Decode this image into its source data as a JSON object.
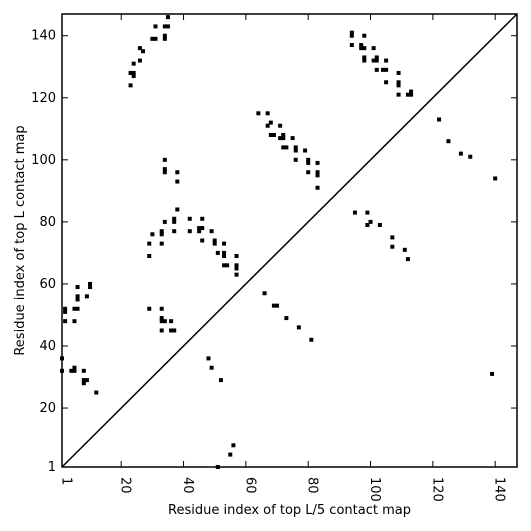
{
  "chart_data": {
    "type": "scatter",
    "xlabel": "Residue index of top L/5 contact map",
    "ylabel": "Residue index of top L contact map",
    "xlim": [
      1,
      147
    ],
    "ylim": [
      1,
      147
    ],
    "xticks": [
      1,
      20,
      40,
      60,
      80,
      100,
      120,
      140
    ],
    "yticks": [
      1,
      20,
      40,
      60,
      80,
      100,
      120,
      140
    ],
    "diagonal": true,
    "marker_color": "#000000",
    "lower_triangle_points": [
      [
        1,
        36
      ],
      [
        1,
        32
      ],
      [
        2,
        52
      ],
      [
        2,
        51
      ],
      [
        2,
        48
      ],
      [
        5,
        48
      ],
      [
        5,
        52
      ],
      [
        6,
        52
      ],
      [
        6,
        55
      ],
      [
        6,
        56
      ],
      [
        6,
        59
      ],
      [
        4,
        32
      ],
      [
        5,
        32
      ],
      [
        5,
        33
      ],
      [
        8,
        28
      ],
      [
        8,
        29
      ],
      [
        9,
        29
      ],
      [
        8,
        32
      ],
      [
        9,
        56
      ],
      [
        10,
        59
      ],
      [
        10,
        60
      ],
      [
        12,
        25
      ],
      [
        29,
        52
      ],
      [
        29,
        69
      ],
      [
        29,
        73
      ],
      [
        30,
        76
      ],
      [
        33,
        48
      ],
      [
        33,
        49
      ],
      [
        34,
        48
      ],
      [
        33,
        52
      ],
      [
        33,
        45
      ],
      [
        33,
        73
      ],
      [
        33,
        76
      ],
      [
        33,
        77
      ],
      [
        34,
        80
      ],
      [
        36,
        48
      ],
      [
        36,
        45
      ],
      [
        37,
        45
      ],
      [
        37,
        77
      ],
      [
        37,
        80
      ],
      [
        37,
        81
      ],
      [
        38,
        84
      ],
      [
        42,
        77
      ],
      [
        42,
        81
      ],
      [
        45,
        77
      ],
      [
        45,
        78
      ],
      [
        46,
        74
      ],
      [
        46,
        78
      ],
      [
        46,
        81
      ],
      [
        48,
        36
      ],
      [
        49,
        33
      ],
      [
        49,
        77
      ],
      [
        50,
        73
      ],
      [
        50,
        74
      ],
      [
        51,
        70
      ],
      [
        52,
        29
      ],
      [
        53,
        66
      ],
      [
        53,
        69
      ],
      [
        53,
        70
      ],
      [
        53,
        73
      ],
      [
        54,
        66
      ],
      [
        57,
        63
      ],
      [
        57,
        65
      ],
      [
        57,
        66
      ],
      [
        57,
        69
      ],
      [
        66,
        57
      ],
      [
        69,
        53
      ],
      [
        70,
        53
      ],
      [
        73,
        49
      ],
      [
        77,
        46
      ],
      [
        81,
        42
      ],
      [
        95,
        83
      ],
      [
        99,
        83
      ],
      [
        99,
        79
      ],
      [
        100,
        80
      ],
      [
        103,
        79
      ],
      [
        107,
        75
      ],
      [
        107,
        72
      ],
      [
        111,
        71
      ],
      [
        112,
        68
      ],
      [
        139,
        31
      ],
      [
        51,
        1
      ],
      [
        55,
        5
      ],
      [
        56,
        8
      ]
    ],
    "upper_triangle_points": [
      [
        23,
        124
      ],
      [
        23,
        128
      ],
      [
        24,
        128
      ],
      [
        24,
        127
      ],
      [
        24,
        131
      ],
      [
        26,
        132
      ],
      [
        26,
        136
      ],
      [
        27,
        135
      ],
      [
        30,
        139
      ],
      [
        31,
        139
      ],
      [
        31,
        143
      ],
      [
        34,
        139
      ],
      [
        34,
        140
      ],
      [
        34,
        143
      ],
      [
        35,
        143
      ],
      [
        35,
        146
      ],
      [
        34,
        100
      ],
      [
        34,
        97
      ],
      [
        34,
        96
      ],
      [
        38,
        96
      ],
      [
        38,
        93
      ],
      [
        64,
        115
      ],
      [
        67,
        115
      ],
      [
        67,
        111
      ],
      [
        68,
        112
      ],
      [
        68,
        108
      ],
      [
        69,
        108
      ],
      [
        71,
        111
      ],
      [
        71,
        107
      ],
      [
        72,
        107
      ],
      [
        72,
        108
      ],
      [
        72,
        104
      ],
      [
        73,
        104
      ],
      [
        75,
        107
      ],
      [
        76,
        104
      ],
      [
        76,
        103
      ],
      [
        76,
        100
      ],
      [
        79,
        103
      ],
      [
        80,
        100
      ],
      [
        80,
        99
      ],
      [
        80,
        96
      ],
      [
        83,
        99
      ],
      [
        83,
        96
      ],
      [
        83,
        95
      ],
      [
        83,
        91
      ],
      [
        94,
        140
      ],
      [
        94,
        141
      ],
      [
        94,
        137
      ],
      [
        97,
        137
      ],
      [
        97,
        136
      ],
      [
        98,
        136
      ],
      [
        98,
        132
      ],
      [
        98,
        133
      ],
      [
        98,
        140
      ],
      [
        101,
        136
      ],
      [
        101,
        132
      ],
      [
        102,
        133
      ],
      [
        102,
        132
      ],
      [
        102,
        129
      ],
      [
        104,
        129
      ],
      [
        105,
        129
      ],
      [
        105,
        125
      ],
      [
        105,
        132
      ],
      [
        109,
        128
      ],
      [
        109,
        125
      ],
      [
        109,
        124
      ],
      [
        109,
        121
      ],
      [
        112,
        121
      ],
      [
        113,
        121
      ],
      [
        113,
        122
      ],
      [
        122,
        113
      ],
      [
        125,
        106
      ],
      [
        129,
        102
      ],
      [
        132,
        101
      ],
      [
        140,
        94
      ]
    ]
  }
}
